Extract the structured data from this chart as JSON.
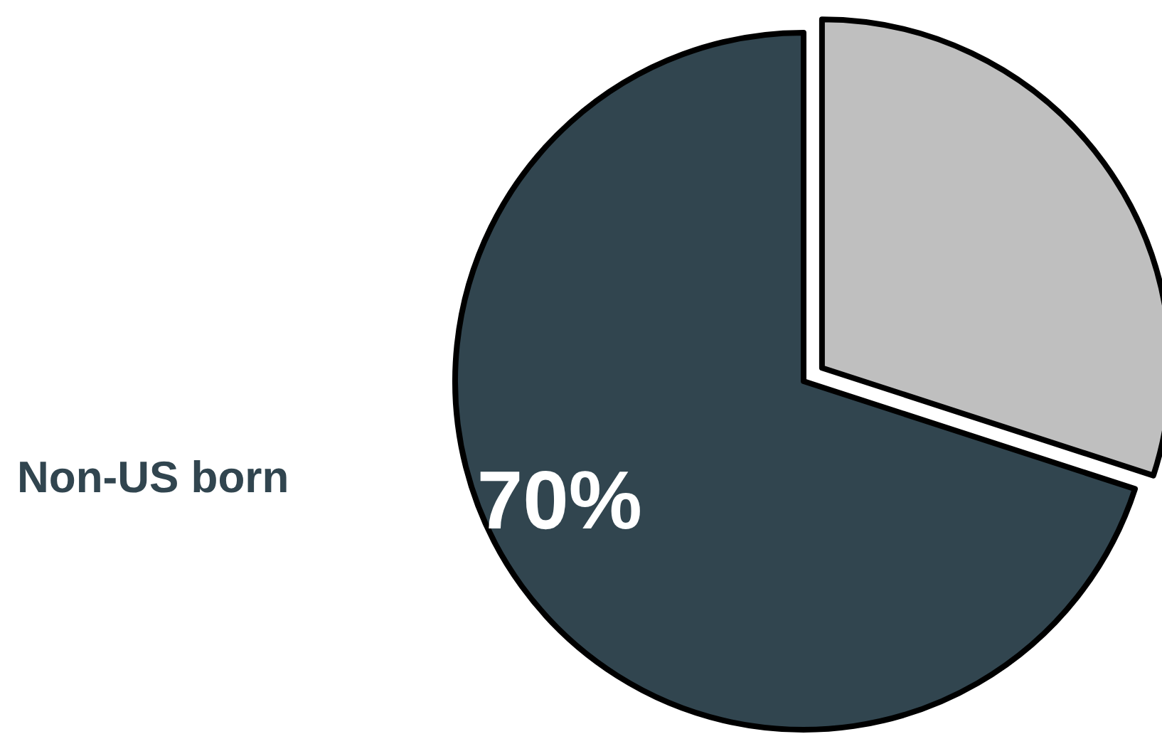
{
  "chart_data": {
    "type": "pie",
    "categories": [
      "Non-US born",
      null
    ],
    "values": [
      70,
      30
    ],
    "colors": [
      "#31454f",
      "#bfbfbf"
    ],
    "value_labels": [
      "70%",
      null
    ]
  }
}
